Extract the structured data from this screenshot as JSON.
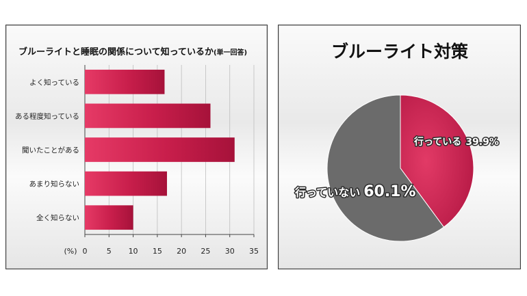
{
  "chart_data": [
    {
      "type": "bar",
      "orientation": "horizontal",
      "title": "ブルーライトと睡眠の関係について知っているか",
      "title_suffix": "(単一回答)",
      "unit_label": "(%)",
      "categories": [
        "よく知っている",
        "ある程度知っている",
        "聞いたことがある",
        "あまり知らない",
        "全く知らない"
      ],
      "values": [
        16.5,
        26,
        31,
        17,
        10
      ],
      "xlim": [
        0,
        35
      ],
      "xticks": [
        0,
        5,
        10,
        15,
        20,
        25,
        30,
        35
      ],
      "grid": true,
      "bar_color": "#c81e4b"
    },
    {
      "type": "pie",
      "title": "ブルーライト対策",
      "slices": [
        {
          "label": "行っている",
          "value": 39.9,
          "display": "39.9%",
          "color": "#c41f4c"
        },
        {
          "label": "行っていない",
          "value": 60.1,
          "display": "60.1%",
          "color": "#6b6b6b"
        }
      ]
    }
  ]
}
